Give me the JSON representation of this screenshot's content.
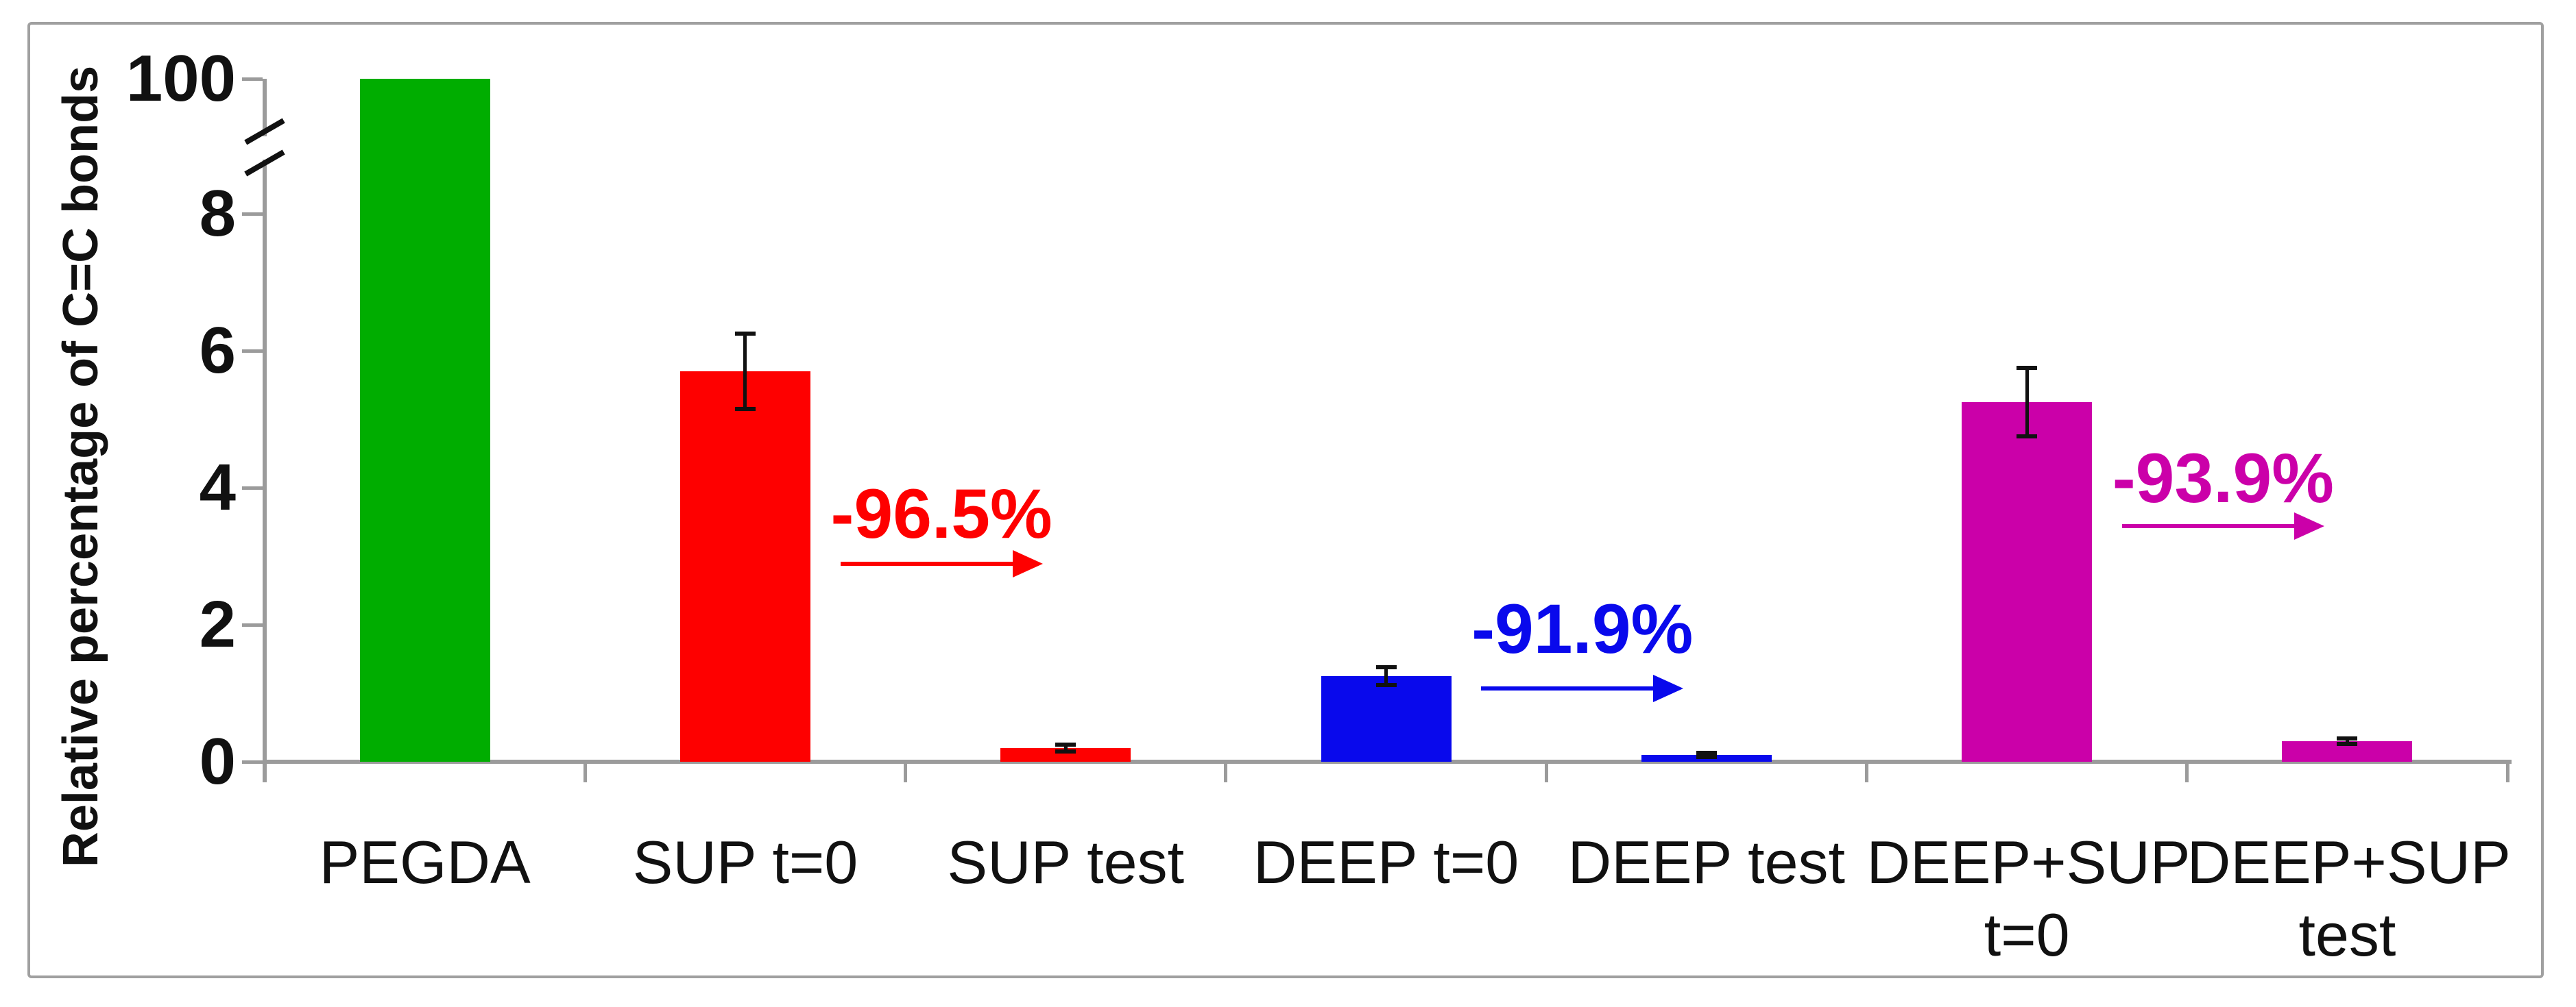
{
  "figure": {
    "background": "#FFFFFF",
    "border_color": "#A0A0A0",
    "axis_color": "#9B9B9B"
  },
  "chart_data": {
    "type": "bar",
    "title": "",
    "xlabel": "",
    "ylabel": "Relative percentage of C=C bonds",
    "grid": false,
    "legend": false,
    "y_axis": {
      "ticks": [
        0,
        2,
        4,
        6,
        8,
        100
      ],
      "broken_axis": true,
      "break_between": [
        8,
        100
      ],
      "unit": "relative %"
    },
    "categories": [
      {
        "label_lines": [
          "PEGDA"
        ],
        "value": 100,
        "error": null,
        "color": "#00AD00"
      },
      {
        "label_lines": [
          "SUP t=0"
        ],
        "value": 5.7,
        "error": 0.55,
        "color": "#FE0000"
      },
      {
        "label_lines": [
          "SUP test"
        ],
        "value": 0.2,
        "error": 0.05,
        "color": "#FE0000"
      },
      {
        "label_lines": [
          "DEEP t=0"
        ],
        "value": 1.25,
        "error": 0.13,
        "color": "#0909EC"
      },
      {
        "label_lines": [
          "DEEP test"
        ],
        "value": 0.1,
        "error": 0.03,
        "color": "#0909EC"
      },
      {
        "label_lines": [
          "DEEP+SUP",
          "t=0"
        ],
        "value": 5.25,
        "error": 0.5,
        "color": "#CB00A9"
      },
      {
        "label_lines": [
          "DEEP+SUP",
          "test"
        ],
        "value": 0.3,
        "error": 0.04,
        "color": "#CB00A9"
      }
    ],
    "annotations": [
      {
        "text": "-96.5%",
        "color": "#FE0000",
        "from_category": 1,
        "to_category": 2
      },
      {
        "text": "-91.9%",
        "color": "#0909EC",
        "from_category": 3,
        "to_category": 4
      },
      {
        "text": "-93.9%",
        "color": "#CB00A9",
        "from_category": 5,
        "to_category": 6
      }
    ]
  }
}
